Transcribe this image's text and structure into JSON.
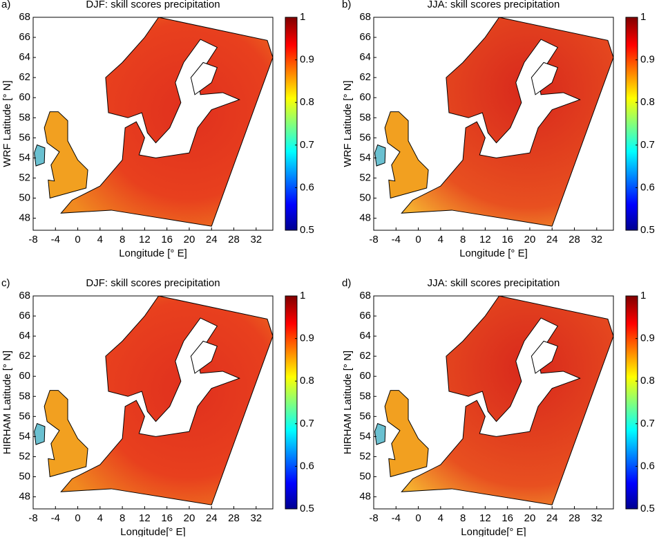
{
  "chart_data": [
    {
      "type": "map",
      "panel": "a)",
      "title": "DJF: skill scores precipitation",
      "xlabel": "Longitude [° E]",
      "ylabel": "WRF Latitude [° N]",
      "xlim": [
        -8,
        35
      ],
      "xticks": [
        -8,
        -4,
        0,
        4,
        8,
        12,
        16,
        20,
        24,
        28,
        32
      ],
      "ylim": [
        46.8,
        68
      ],
      "yticks": [
        48,
        50,
        52,
        54,
        56,
        58,
        60,
        62,
        64,
        66,
        68
      ],
      "clim": [
        0.5,
        1
      ],
      "cticks": [
        0.5,
        0.6,
        0.7,
        0.8,
        0.9,
        1
      ]
    },
    {
      "type": "map",
      "panel": "b)",
      "title": "JJA: skill scores precipitation",
      "xlabel": "Longitude [° E]",
      "ylabel": "WRF Latitude [° N]",
      "xlim": [
        -8,
        35
      ],
      "xticks": [
        -8,
        -4,
        0,
        4,
        8,
        12,
        16,
        20,
        24,
        28,
        32
      ],
      "ylim": [
        46.8,
        68
      ],
      "yticks": [
        48,
        50,
        52,
        54,
        56,
        58,
        60,
        62,
        64,
        66,
        68
      ],
      "clim": [
        0.5,
        1
      ],
      "cticks": [
        0.5,
        0.6,
        0.7,
        0.8,
        0.9,
        1
      ]
    },
    {
      "type": "map",
      "panel": "c)",
      "title": "DJF: skill scores precipitation",
      "xlabel": "Longitude[° E]",
      "ylabel": "HIRHAM Latitude [° N]",
      "xlim": [
        -8,
        35
      ],
      "xticks": [
        -8,
        -4,
        0,
        4,
        8,
        12,
        16,
        20,
        24,
        28,
        32
      ],
      "ylim": [
        46.8,
        68
      ],
      "yticks": [
        48,
        50,
        52,
        54,
        56,
        58,
        60,
        62,
        64,
        66,
        68
      ],
      "clim": [
        0.5,
        1
      ],
      "cticks": [
        0.5,
        0.6,
        0.7,
        0.8,
        0.9,
        1
      ]
    },
    {
      "type": "map",
      "panel": "d)",
      "title": "JJA: skill scores precipitation",
      "xlabel": "Longitude[° E]",
      "ylabel": "HIRHAM Latitude [° N]",
      "xlim": [
        -8,
        35
      ],
      "xticks": [
        -8,
        -4,
        0,
        4,
        8,
        12,
        16,
        20,
        24,
        28,
        32
      ],
      "ylim": [
        46.8,
        68
      ],
      "yticks": [
        48,
        50,
        52,
        54,
        56,
        58,
        60,
        62,
        64,
        66,
        68
      ],
      "clim": [
        0.5,
        1
      ],
      "cticks": [
        0.5,
        0.6,
        0.7,
        0.8,
        0.9,
        1
      ]
    }
  ]
}
